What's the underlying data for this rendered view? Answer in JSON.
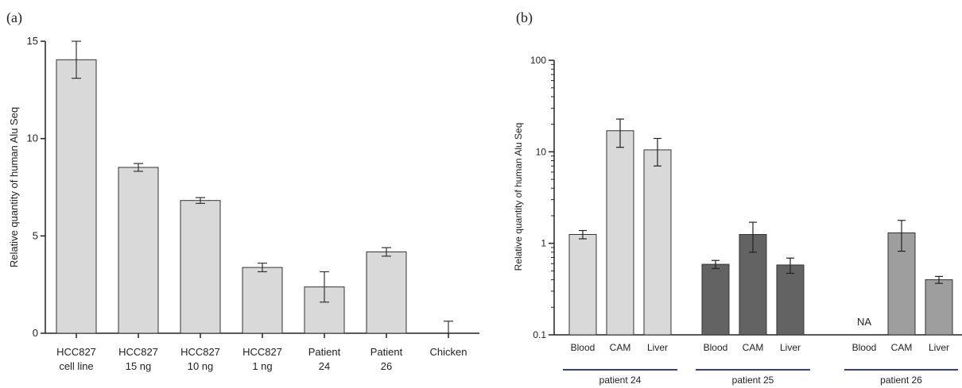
{
  "chart_data": [
    {
      "panel": "(a)",
      "type": "bar",
      "title": "",
      "xlabel": "",
      "ylabel": "Relative quantity of human Alu Seq",
      "ylim": [
        0,
        15
      ],
      "yticks": [
        "0",
        "5",
        "10",
        "15"
      ],
      "categories": [
        [
          "HCC827",
          "cell line"
        ],
        [
          "HCC827",
          "15 ng"
        ],
        [
          "HCC827",
          "10 ng"
        ],
        [
          "HCC827",
          "1 ng"
        ],
        [
          "Patient",
          "24"
        ],
        [
          "Patient",
          "26"
        ],
        [
          "Chicken"
        ]
      ],
      "values": [
        14.05,
        8.52,
        6.82,
        3.38,
        2.38,
        4.18,
        0.0
      ],
      "errors": [
        0.95,
        0.2,
        0.15,
        0.22,
        0.78,
        0.22,
        0.62
      ],
      "bar_color": "#d9d9d9"
    },
    {
      "panel": "(b)",
      "type": "bar",
      "scale": "log",
      "title": "",
      "xlabel": "",
      "ylabel": "Relative quantity of human Alu Seq",
      "ylim": [
        0.1,
        100
      ],
      "yticks": [
        "0.1",
        "1",
        "10",
        "100"
      ],
      "groups": [
        {
          "name": "patient 24",
          "color": "#d9d9d9",
          "bars": [
            {
              "label": "Blood",
              "value": 1.25,
              "err": 0.13
            },
            {
              "label": "CAM",
              "value": 17.0,
              "err": 5.8
            },
            {
              "label": "Liver",
              "value": 10.5,
              "err": 3.5
            }
          ]
        },
        {
          "name": "patient 25",
          "color": "#636363",
          "bars": [
            {
              "label": "Blood",
              "value": 0.59,
              "err": 0.06
            },
            {
              "label": "CAM",
              "value": 1.25,
              "err": 0.45
            },
            {
              "label": "Liver",
              "value": 0.58,
              "err": 0.11
            }
          ]
        },
        {
          "name": "patient 26",
          "color": "#9e9e9e",
          "bars": [
            {
              "label": "Blood",
              "value": null,
              "err": null,
              "annotation": "NA"
            },
            {
              "label": "CAM",
              "value": 1.3,
              "err": 0.48
            },
            {
              "label": "Liver",
              "value": 0.4,
              "err": 0.035
            }
          ]
        }
      ],
      "group_line_color": "#3b3f7a"
    }
  ]
}
